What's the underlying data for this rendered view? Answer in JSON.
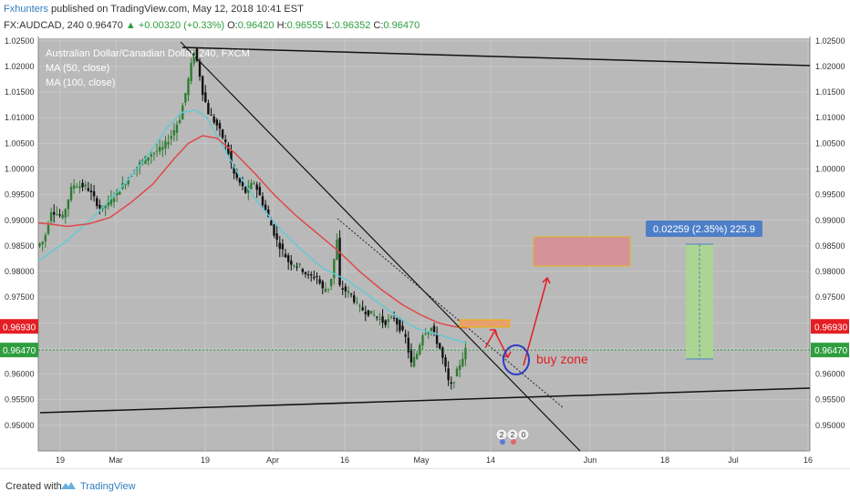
{
  "header": {
    "author": "Fxhunters",
    "published_text": "published on TradingView.com, May 12, 2018 10:41 EST",
    "symbol": "FX:AUDCAD, 240",
    "last_price": "0.96470",
    "change": "+0.00320 (+0.33%)",
    "open_label": "O:",
    "open": "0.96420",
    "high_label": "H:",
    "high": "0.96555",
    "low_label": "L:",
    "low": "0.96352",
    "close_label": "C:",
    "close": "0.96470"
  },
  "footer": {
    "created_with": "Created with",
    "brand": "TradingView"
  },
  "colors": {
    "chart_bg": "#b9b9b9",
    "grid": "#c7c7c7",
    "ma50": "#63c9d4",
    "ma100": "#e04848",
    "candle_up": "#2e7d32",
    "candle_down": "#111111",
    "price_red": "#e31e24",
    "price_green": "#2e9e3e",
    "measure_blue": "#4d7fc7",
    "annotation_red": "#e31e24",
    "circle_blue": "#2d3ec4",
    "zone_fill": "#d98d94",
    "zone_border": "#e6b800",
    "target_green": "#a9d98c"
  },
  "chart_data": {
    "type": "candlestick",
    "title": "Australian Dollar/Canadian Dollar, 240, FXCM",
    "legend": [
      "MA (50, close)",
      "MA (100, close)"
    ],
    "y_axis": {
      "position": "right",
      "range": [
        0.945,
        1.0255
      ],
      "ticks": [
        "1.02500",
        "1.02000",
        "1.01500",
        "1.01000",
        "1.00500",
        "1.00000",
        "0.99500",
        "0.99000",
        "0.98500",
        "0.98000",
        "0.97500",
        "0.97000",
        "0.96500",
        "0.96000",
        "0.95500",
        "0.95000"
      ]
    },
    "x_axis": {
      "ticks": [
        "19",
        "Mar",
        "19",
        "Apr",
        "16",
        "May",
        "14",
        "Jun",
        "18",
        "Jul",
        "16"
      ]
    },
    "price_labels": [
      {
        "value": "0.96930",
        "color": "#e31e24"
      },
      {
        "value": "0.96470",
        "color": "#2e9e3e"
      }
    ],
    "current_price": 0.9647,
    "path_points": [
      [
        0,
        0.985
      ],
      [
        5,
        0.986
      ],
      [
        10,
        0.992
      ],
      [
        18,
        0.9905
      ],
      [
        25,
        0.997
      ],
      [
        35,
        0.9965
      ],
      [
        45,
        0.992
      ],
      [
        55,
        0.995
      ],
      [
        70,
        1.0005
      ],
      [
        80,
        1.003
      ],
      [
        88,
        1.004
      ],
      [
        95,
        1.007
      ],
      [
        100,
        1.01
      ],
      [
        105,
        1.016
      ],
      [
        110,
        1.023
      ],
      [
        113,
        1.02
      ],
      [
        116,
        1.015
      ],
      [
        120,
        1.011
      ],
      [
        126,
        1.0085
      ],
      [
        132,
        1.005
      ],
      [
        138,
        0.999
      ],
      [
        146,
        0.9955
      ],
      [
        152,
        0.9975
      ],
      [
        160,
        0.992
      ],
      [
        168,
        0.986
      ],
      [
        176,
        0.982
      ],
      [
        184,
        0.981
      ],
      [
        190,
        0.979
      ],
      [
        196,
        0.979
      ],
      [
        200,
        0.9765
      ],
      [
        205,
        0.977
      ],
      [
        210,
        0.986
      ],
      [
        212,
        0.977
      ],
      [
        220,
        0.9755
      ],
      [
        225,
        0.973
      ],
      [
        232,
        0.972
      ],
      [
        238,
        0.9712
      ],
      [
        243,
        0.97
      ],
      [
        250,
        0.971
      ],
      [
        258,
        0.967
      ],
      [
        262,
        0.962
      ],
      [
        266,
        0.964
      ],
      [
        270,
        0.968
      ],
      [
        276,
        0.969
      ],
      [
        282,
        0.965
      ],
      [
        287,
        0.96
      ],
      [
        289,
        0.957
      ],
      [
        292,
        0.959
      ],
      [
        296,
        0.962
      ],
      [
        300,
        0.9647
      ]
    ],
    "ma50_points": [
      [
        0,
        0.982
      ],
      [
        20,
        0.986
      ],
      [
        40,
        0.991
      ],
      [
        60,
        0.997
      ],
      [
        75,
        1.002
      ],
      [
        90,
        1.008
      ],
      [
        100,
        1.011
      ],
      [
        110,
        1.0115
      ],
      [
        118,
        1.01
      ],
      [
        128,
        1.005
      ],
      [
        140,
        0.999
      ],
      [
        155,
        0.993
      ],
      [
        170,
        0.988
      ],
      [
        185,
        0.984
      ],
      [
        200,
        0.9805
      ],
      [
        215,
        0.9785
      ],
      [
        228,
        0.976
      ],
      [
        240,
        0.9735
      ],
      [
        252,
        0.971
      ],
      [
        264,
        0.969
      ],
      [
        276,
        0.968
      ],
      [
        288,
        0.967
      ],
      [
        300,
        0.966
      ]
    ],
    "ma100_points": [
      [
        0,
        0.9895
      ],
      [
        10,
        0.9892
      ],
      [
        20,
        0.9888
      ],
      [
        35,
        0.9893
      ],
      [
        50,
        0.9905
      ],
      [
        65,
        0.9935
      ],
      [
        80,
        0.997
      ],
      [
        95,
        1.002
      ],
      [
        105,
        1.005
      ],
      [
        115,
        1.0065
      ],
      [
        125,
        1.006
      ],
      [
        138,
        1.003
      ],
      [
        152,
        0.999
      ],
      [
        165,
        0.995
      ],
      [
        180,
        0.991
      ],
      [
        195,
        0.9875
      ],
      [
        210,
        0.984
      ],
      [
        225,
        0.98
      ],
      [
        240,
        0.9765
      ],
      [
        255,
        0.9735
      ],
      [
        268,
        0.9715
      ],
      [
        280,
        0.97
      ],
      [
        290,
        0.9693
      ],
      [
        300,
        0.969
      ]
    ],
    "measure_label": "0.02259 (2.35%) 225.9",
    "annotation": "buy zone"
  }
}
